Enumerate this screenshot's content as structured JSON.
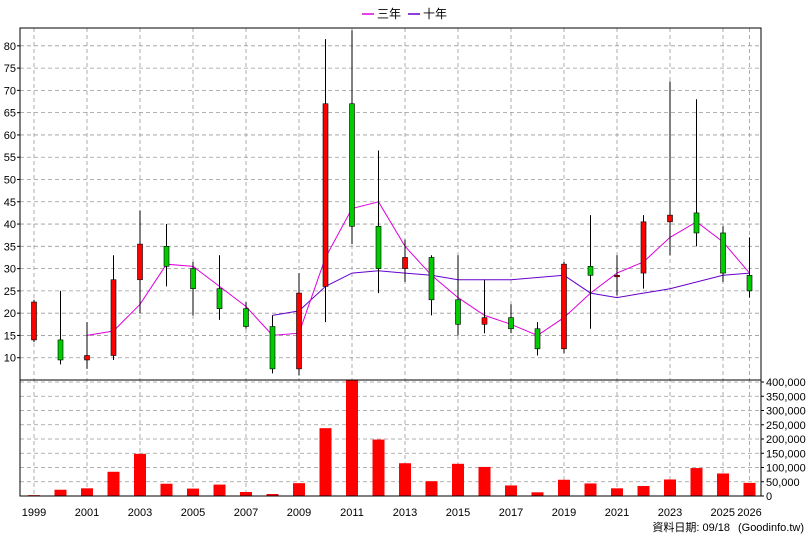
{
  "legend": {
    "ma3_label": "三年",
    "ma10_label": "十年"
  },
  "footer": {
    "date_text": "資料日期: 09/18",
    "source_text": "(Goodinfo.tw)"
  },
  "colors": {
    "up": "#ff0000",
    "down": "#00cc00",
    "wick": "#000000",
    "ma3": "#dd00dd",
    "ma10": "#6600cc",
    "volume": "#ff0000",
    "grid": "#999999"
  },
  "chart_data": {
    "type": "candlestick",
    "price_axis": {
      "min": 5,
      "max": 84,
      "ticks": [
        10,
        15,
        20,
        25,
        30,
        35,
        40,
        45,
        50,
        55,
        60,
        65,
        70,
        75,
        80
      ]
    },
    "volume_axis": {
      "min": 0,
      "max": 400000,
      "tick_labels": [
        "0",
        "50,000",
        "100,000",
        "150,000",
        "200,000",
        "250,000",
        "300,000",
        "350,000",
        "400,000"
      ]
    },
    "x_tick_labels": [
      "1999",
      "2001",
      "2003",
      "2005",
      "2007",
      "2009",
      "2011",
      "2013",
      "2015",
      "2017",
      "2019",
      "2021",
      "2023",
      "2025",
      "2026"
    ],
    "years": [
      1999,
      2000,
      2001,
      2002,
      2003,
      2004,
      2005,
      2006,
      2007,
      2008,
      2009,
      2010,
      2011,
      2012,
      2013,
      2014,
      2015,
      2016,
      2017,
      2018,
      2019,
      2020,
      2021,
      2022,
      2023,
      2024,
      2025,
      2026
    ],
    "candles": [
      {
        "year": 1999,
        "open": 14,
        "high": 23,
        "low": 13.5,
        "close": 22.5
      },
      {
        "year": 2000,
        "open": 14,
        "high": 25,
        "low": 8.5,
        "close": 9.5
      },
      {
        "year": 2001,
        "open": 9.5,
        "high": 18,
        "low": 7.5,
        "close": 10.5
      },
      {
        "year": 2002,
        "open": 10.5,
        "high": 33,
        "low": 9.5,
        "close": 27.5
      },
      {
        "year": 2003,
        "open": 27.5,
        "high": 43,
        "low": 20,
        "close": 35.5
      },
      {
        "year": 2004,
        "open": 35,
        "high": 40,
        "low": 26,
        "close": 30.5
      },
      {
        "year": 2005,
        "open": 30,
        "high": 31.5,
        "low": 19.5,
        "close": 25.5
      },
      {
        "year": 2006,
        "open": 25.5,
        "high": 33,
        "low": 18.5,
        "close": 21
      },
      {
        "year": 2007,
        "open": 21,
        "high": 22.5,
        "low": 16.5,
        "close": 17
      },
      {
        "year": 2008,
        "open": 17,
        "high": 19.5,
        "low": 6.5,
        "close": 7.5
      },
      {
        "year": 2009,
        "open": 7.5,
        "high": 29,
        "low": 6,
        "close": 24.5
      },
      {
        "year": 2010,
        "open": 26,
        "high": 81.5,
        "low": 18,
        "close": 67
      },
      {
        "year": 2011,
        "open": 67,
        "high": 83.5,
        "low": 35.5,
        "close": 39.5
      },
      {
        "year": 2012,
        "open": 39.5,
        "high": 56.5,
        "low": 24.5,
        "close": 30
      },
      {
        "year": 2013,
        "open": 30,
        "high": 36.5,
        "low": 27,
        "close": 32.5
      },
      {
        "year": 2014,
        "open": 32.5,
        "high": 33,
        "low": 19.5,
        "close": 23
      },
      {
        "year": 2015,
        "open": 23,
        "high": 33,
        "low": 15,
        "close": 17.5
      },
      {
        "year": 2016,
        "open": 17.5,
        "high": 27.5,
        "low": 15.5,
        "close": 19
      },
      {
        "year": 2017,
        "open": 19,
        "high": 22,
        "low": 15.5,
        "close": 16.5
      },
      {
        "year": 2018,
        "open": 16.5,
        "high": 18,
        "low": 10.5,
        "close": 12
      },
      {
        "year": 2019,
        "open": 12,
        "high": 31.5,
        "low": 11,
        "close": 31
      },
      {
        "year": 2020,
        "open": 30.5,
        "high": 42,
        "low": 16.5,
        "close": 28.5
      },
      {
        "year": 2021,
        "open": 28.5,
        "high": 33,
        "low": 24,
        "close": 28.5
      },
      {
        "year": 2022,
        "open": 29,
        "high": 42,
        "low": 25.5,
        "close": 40.5
      },
      {
        "year": 2023,
        "open": 40.5,
        "high": 72,
        "low": 33,
        "close": 42
      },
      {
        "year": 2024,
        "open": 42.5,
        "high": 68,
        "low": 35,
        "close": 38
      },
      {
        "year": 2025,
        "open": 38,
        "high": 39.5,
        "low": 27,
        "close": 29
      },
      {
        "year": 2026,
        "open": 28.5,
        "high": 37,
        "low": 23.5,
        "close": 25
      }
    ],
    "ma3": [
      null,
      null,
      15,
      16,
      22,
      31,
      30.5,
      26,
      21.5,
      15,
      15.5,
      32.5,
      43.5,
      45,
      35,
      28.5,
      23.5,
      19.5,
      17.5,
      15,
      19,
      24.5,
      29,
      31.5,
      37,
      40.5,
      36,
      29
    ],
    "ma10": [
      null,
      null,
      null,
      null,
      null,
      null,
      null,
      null,
      null,
      19.5,
      20.5,
      26,
      29,
      29.5,
      29,
      28.5,
      27.5,
      27.5,
      27.5,
      28,
      28.5,
      24.5,
      23.5,
      24.5,
      25.5,
      27,
      28.5,
      29
    ],
    "volume": [
      3000,
      22000,
      27000,
      85000,
      148000,
      43000,
      26000,
      40000,
      14000,
      7000,
      45000,
      238000,
      408000,
      198000,
      115000,
      52000,
      113000,
      102000,
      37000,
      13000,
      57000,
      44000,
      27000,
      35000,
      58000,
      98000,
      79000,
      46000
    ]
  }
}
